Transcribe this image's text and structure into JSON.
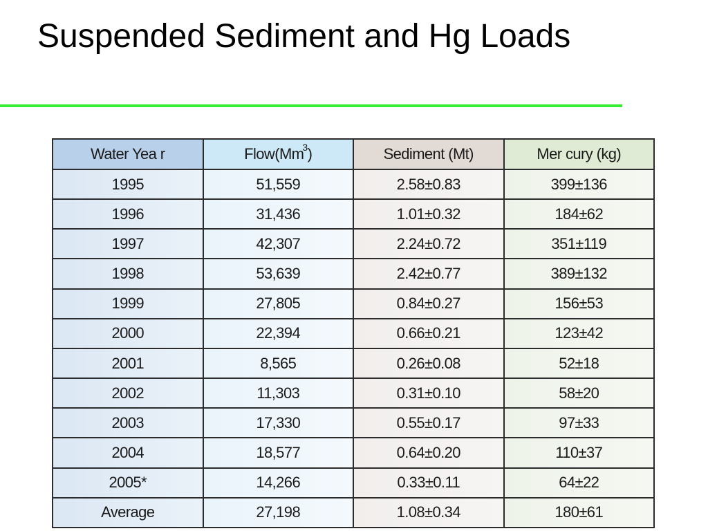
{
  "slide": {
    "title": "Suspended Sediment and Hg Loads"
  },
  "table": {
    "headers": {
      "year": "Water Yea r",
      "flow": "Flow(Mm",
      "flow_sup": "3",
      "flow_close": ")",
      "sediment": "Sediment (Mt)",
      "mercury": "Mer cury (kg)"
    },
    "rows": [
      {
        "year": "1995",
        "flow": "51,559",
        "sediment": "2.58±0.83",
        "mercury": "399±136"
      },
      {
        "year": "1996",
        "flow": "31,436",
        "sediment": "1.01±0.32",
        "mercury": "184±62"
      },
      {
        "year": "1997",
        "flow": "42,307",
        "sediment": "2.24±0.72",
        "mercury": "351±119"
      },
      {
        "year": "1998",
        "flow": "53,639",
        "sediment": "2.42±0.77",
        "mercury": "389±132"
      },
      {
        "year": "1999",
        "flow": "27,805",
        "sediment": "0.84±0.27",
        "mercury": "156±53"
      },
      {
        "year": "2000",
        "flow": "22,394",
        "sediment": "0.66±0.21",
        "mercury": "123±42"
      },
      {
        "year": "2001",
        "flow": "8,565",
        "sediment": "0.26±0.08",
        "mercury": "52±18"
      },
      {
        "year": "2002",
        "flow": "11,303",
        "sediment": "0.31±0.10",
        "mercury": "58±20"
      },
      {
        "year": "2003",
        "flow": "17,330",
        "sediment": "0.55±0.17",
        "mercury": "97±33"
      },
      {
        "year": "2004",
        "flow": "18,577",
        "sediment": "0.64±0.20",
        "mercury": "110±37"
      },
      {
        "year": "2005*",
        "flow": "14,266",
        "sediment": "0.33±0.11",
        "mercury": "64±22"
      },
      {
        "year": "Average",
        "flow": "27,198",
        "sediment": "1.08±0.34",
        "mercury": "180±61"
      }
    ]
  },
  "colors": {
    "title_rule": "#33ee33",
    "header_year": "#b9d0ea",
    "header_flow": "#cde9f7",
    "header_sediment": "#e2dad4",
    "header_mercury": "#dfebd4"
  }
}
